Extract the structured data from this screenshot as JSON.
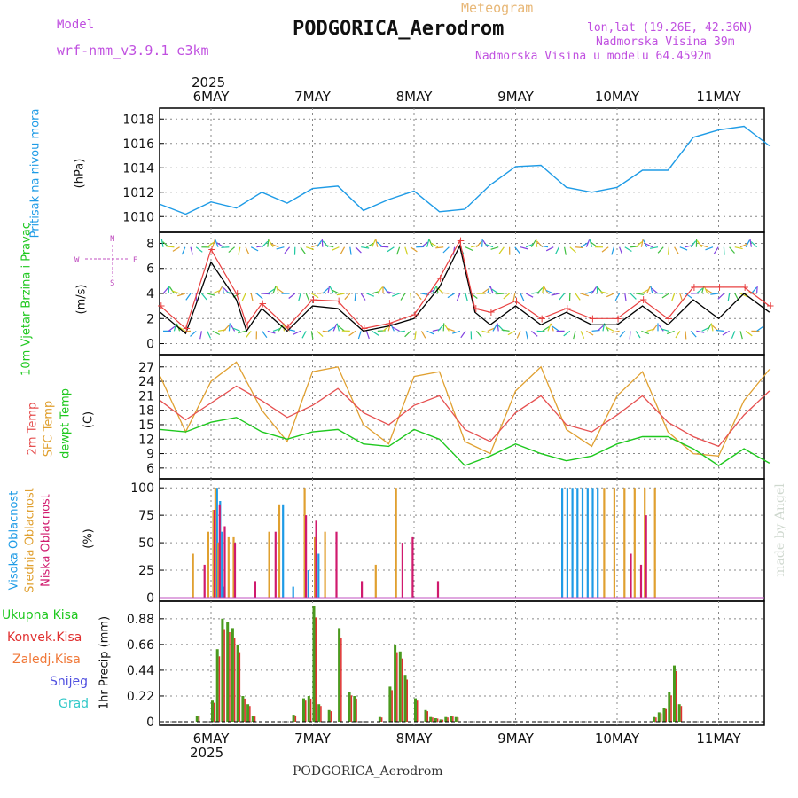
{
  "header": {
    "meteogram_label": "Meteogram",
    "model_label": "Model",
    "model_name": "wrf-nmm_v3.9.1 e3km",
    "station": "PODGORICA_Aerodrom",
    "lonlat": "lon,lat (19.26E, 42.36N)",
    "elevation": "Nadmorska Visina 39m",
    "model_elevation": "Nadmorska Visina u modelu 64.4592m",
    "footer_station": "PODGORICA_Aerodrom",
    "watermark": "made by Angel"
  },
  "colors": {
    "pressure": "#1e9be6",
    "wind_label": "#1ec81e",
    "temp2m": "#e65050",
    "sfc": "#e0a030",
    "dewpt": "#1ec81e",
    "high_cloud": "#1e9be6",
    "mid_cloud": "#e0a030",
    "low_cloud": "#d01a6e",
    "precip_total": "#4a9a1e",
    "precip_conv": "#e03030",
    "precip_frozen": "#f07838",
    "snow": "#5050e0",
    "hail": "#30c8c8",
    "wind_dir": "#c050c0"
  },
  "chart_data": [
    {
      "id": "pressure",
      "type": "line",
      "ylabel": "Pritisak na nivou mora",
      "unit": "(hPa)",
      "yticks": [
        1010,
        1012,
        1014,
        1016,
        1018
      ],
      "ylim": [
        1009.0,
        1018.6
      ],
      "x_days": [
        0.0,
        0.25,
        0.5,
        0.75,
        1.0,
        1.25,
        1.5,
        1.75,
        2.0,
        2.25,
        2.5,
        2.75,
        3.0,
        3.25,
        3.5,
        3.75,
        4.0,
        4.25,
        4.5,
        4.75,
        5.0,
        5.25,
        5.5,
        5.75,
        6.0
      ],
      "values": [
        1011.0,
        1010.2,
        1011.2,
        1010.7,
        1012.0,
        1011.1,
        1012.3,
        1012.5,
        1010.5,
        1011.4,
        1012.1,
        1010.4,
        1010.6,
        1012.6,
        1014.1,
        1014.2,
        1012.4,
        1012.0,
        1012.4,
        1013.8,
        1013.8,
        1016.5,
        1017.1,
        1017.4,
        1015.8
      ]
    },
    {
      "id": "wind",
      "type": "line",
      "ylabel": "10m Vjetar Brzina i Pravac",
      "unit": "(m/s)",
      "direction_legend": [
        "W",
        "E",
        "N",
        "S"
      ],
      "yticks": [
        0,
        2,
        4,
        6,
        8
      ],
      "ylim": [
        -0.6,
        8.6
      ],
      "x_days": [
        0.0,
        0.25,
        0.5,
        0.75,
        0.85,
        1.0,
        1.25,
        1.5,
        1.75,
        2.0,
        2.25,
        2.5,
        2.75,
        2.95,
        3.1,
        3.25,
        3.5,
        3.75,
        4.0,
        4.25,
        4.5,
        4.75,
        5.0,
        5.25,
        5.5,
        5.75,
        6.0
      ],
      "speed": [
        2.5,
        0.8,
        6.5,
        3.5,
        1.0,
        2.8,
        1.0,
        3.0,
        2.8,
        1.0,
        1.4,
        2.0,
        4.5,
        7.8,
        2.5,
        1.5,
        3.0,
        1.5,
        2.5,
        1.5,
        1.5,
        3.0,
        1.5,
        3.5,
        2.0,
        4.0,
        2.5
      ],
      "gust": [
        3.0,
        1.2,
        7.5,
        4.0,
        1.5,
        3.2,
        1.3,
        3.5,
        3.4,
        1.2,
        1.6,
        2.3,
        5.2,
        8.2,
        2.8,
        2.5,
        3.4,
        2.0,
        2.8,
        2.0,
        2.0,
        3.5,
        2.0,
        4.5,
        4.5,
        4.5,
        3.0
      ],
      "barb_rows": [
        1,
        4,
        7.7
      ]
    },
    {
      "id": "temperature",
      "type": "line",
      "ylabel_2m": "2m Temp",
      "ylabel_sfc": "SFC Temp",
      "ylabel_dewpt": "dewpt Temp",
      "unit": "(C)",
      "yticks": [
        6,
        9,
        12,
        15,
        18,
        21,
        24,
        27
      ],
      "ylim": [
        4.5,
        28.8
      ],
      "x_days": [
        0.0,
        0.25,
        0.5,
        0.75,
        1.0,
        1.25,
        1.5,
        1.75,
        2.0,
        2.25,
        2.5,
        2.75,
        3.0,
        3.25,
        3.5,
        3.75,
        4.0,
        4.25,
        4.5,
        4.75,
        5.0,
        5.25,
        5.5,
        5.75,
        6.0
      ],
      "temp2m": [
        20.0,
        16.0,
        19.5,
        23.0,
        20.0,
        16.5,
        19.0,
        22.5,
        17.5,
        15.0,
        19.0,
        21.0,
        14.0,
        11.5,
        17.5,
        21.0,
        15.0,
        13.5,
        17.0,
        21.0,
        15.5,
        12.5,
        10.5,
        17.0,
        22.0
      ],
      "sfc": [
        25.0,
        13.5,
        24.0,
        28.0,
        18.0,
        11.5,
        26.0,
        27.0,
        15.0,
        11.0,
        25.0,
        26.0,
        11.5,
        9.0,
        22.0,
        27.0,
        14.0,
        10.5,
        21.0,
        26.0,
        13.5,
        9.0,
        8.5,
        20.0,
        26.5
      ],
      "dewpt": [
        14.0,
        13.5,
        15.5,
        16.5,
        13.5,
        12.0,
        13.5,
        14.0,
        11.0,
        10.5,
        14.0,
        12.0,
        6.5,
        8.5,
        11.0,
        9.0,
        7.5,
        8.5,
        11.0,
        12.5,
        12.5,
        10.0,
        6.5,
        10.0,
        7.0
      ]
    },
    {
      "id": "clouds",
      "type": "bar",
      "ylabel_high": "Visoka Oblacnost",
      "ylabel_mid": "Srednja Oblacnost",
      "ylabel_low": "Niska Oblacnost",
      "unit": "(%)",
      "yticks": [
        0,
        25,
        50,
        75,
        100
      ],
      "ylim": [
        0,
        105
      ],
      "high_days": [
        0.55,
        0.58,
        0.6,
        0.62,
        1.2,
        1.3,
        1.45,
        1.55,
        3.95,
        4.0,
        4.05,
        4.1,
        4.15,
        4.2,
        4.25,
        4.3
      ],
      "high_values": [
        100,
        88,
        60,
        10,
        85,
        10,
        25,
        40,
        100,
        100,
        100,
        100,
        100,
        100,
        100,
        100
      ],
      "mid_days": [
        0.3,
        0.45,
        0.5,
        0.52,
        0.55,
        0.65,
        0.7,
        1.05,
        1.15,
        1.4,
        1.5,
        1.6,
        2.1,
        2.3,
        4.35,
        4.45,
        4.55,
        4.65,
        4.75,
        4.85
      ],
      "mid_values": [
        40,
        60,
        80,
        100,
        50,
        55,
        55,
        60,
        85,
        100,
        55,
        60,
        30,
        100,
        100,
        100,
        100,
        100,
        100,
        100
      ],
      "low_days": [
        0.4,
        0.5,
        0.55,
        0.6,
        0.7,
        0.9,
        1.1,
        1.4,
        1.5,
        1.7,
        1.95,
        2.35,
        2.45,
        2.7,
        4.6,
        4.7,
        4.75
      ],
      "low_values": [
        30,
        80,
        85,
        65,
        50,
        15,
        60,
        75,
        70,
        60,
        15,
        50,
        55,
        15,
        40,
        30,
        75
      ]
    },
    {
      "id": "precip",
      "type": "bar",
      "ylabel": "1hr Precip (mm)",
      "legend_total": "Ukupna Kisa",
      "legend_conv": "Konvek.Kisa",
      "legend_frozen": "Zaledj.Kisa",
      "legend_snow": "Snijeg",
      "legend_hail": "Grad",
      "yticks": [
        0,
        0.22,
        0.44,
        0.66,
        0.88
      ],
      "ylim": [
        0,
        1.0
      ],
      "bar_days": [
        0.35,
        0.5,
        0.55,
        0.6,
        0.65,
        0.7,
        0.75,
        0.8,
        0.85,
        0.9,
        1.3,
        1.4,
        1.45,
        1.5,
        1.55,
        1.65,
        1.75,
        1.85,
        1.9,
        2.15,
        2.25,
        2.3,
        2.35,
        2.4,
        2.5,
        2.6,
        2.65,
        2.7,
        2.75,
        2.8,
        2.85,
        2.9,
        4.85,
        4.9,
        4.95,
        5.0,
        5.05,
        5.1
      ],
      "bar_values": [
        0.05,
        0.18,
        0.62,
        0.88,
        0.85,
        0.8,
        0.66,
        0.22,
        0.15,
        0.05,
        0.06,
        0.2,
        0.22,
        0.99,
        0.15,
        0.1,
        0.8,
        0.25,
        0.22,
        0.04,
        0.3,
        0.66,
        0.6,
        0.4,
        0.2,
        0.1,
        0.04,
        0.03,
        0.02,
        0.04,
        0.05,
        0.04,
        0.04,
        0.08,
        0.12,
        0.25,
        0.48,
        0.15
      ]
    }
  ],
  "x_axis": {
    "day_labels": [
      "6MAY",
      "7MAY",
      "8MAY",
      "9MAY",
      "10MAY",
      "11MAY"
    ],
    "year": "2025"
  }
}
